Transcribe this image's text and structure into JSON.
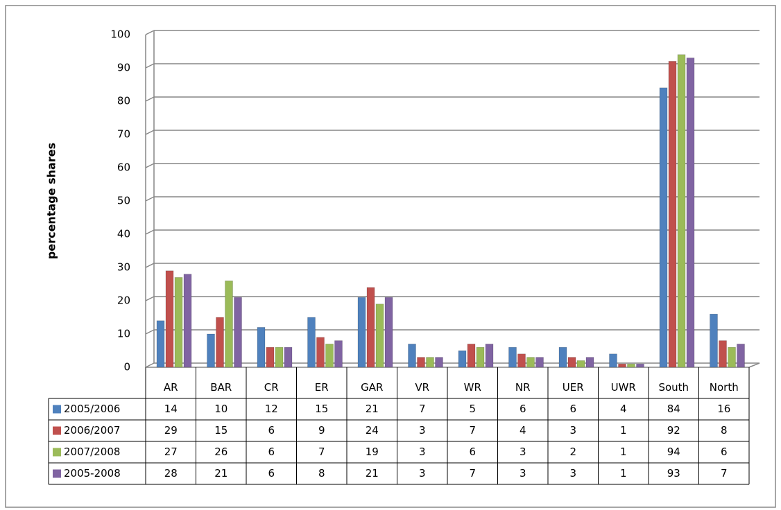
{
  "chart_data": {
    "type": "bar",
    "y_label": "percentage shares",
    "categories": [
      "AR",
      "BAR",
      "CR",
      "ER",
      "GAR",
      "VR",
      "WR",
      "NR",
      "UER",
      "UWR",
      "South",
      "North"
    ],
    "series": [
      {
        "name": "2005/2006",
        "color": "#4f81bd",
        "values": [
          14,
          10,
          12,
          15,
          21,
          7,
          5,
          6,
          6,
          4,
          84,
          16
        ]
      },
      {
        "name": "2006/2007",
        "color": "#c0504d",
        "values": [
          29,
          15,
          6,
          9,
          24,
          3,
          7,
          4,
          3,
          1,
          92,
          8
        ]
      },
      {
        "name": "2007/2008",
        "color": "#9bbb59",
        "values": [
          27,
          26,
          6,
          7,
          19,
          3,
          6,
          3,
          2,
          1,
          94,
          6
        ]
      },
      {
        "name": "2005-2008",
        "color": "#8064a2",
        "values": [
          28,
          21,
          6,
          8,
          21,
          3,
          7,
          3,
          3,
          1,
          93,
          7
        ]
      }
    ],
    "ylim": [
      0,
      100
    ],
    "yticks": [
      0,
      10,
      20,
      30,
      40,
      50,
      60,
      70,
      80,
      90,
      100
    ],
    "grid": true
  }
}
